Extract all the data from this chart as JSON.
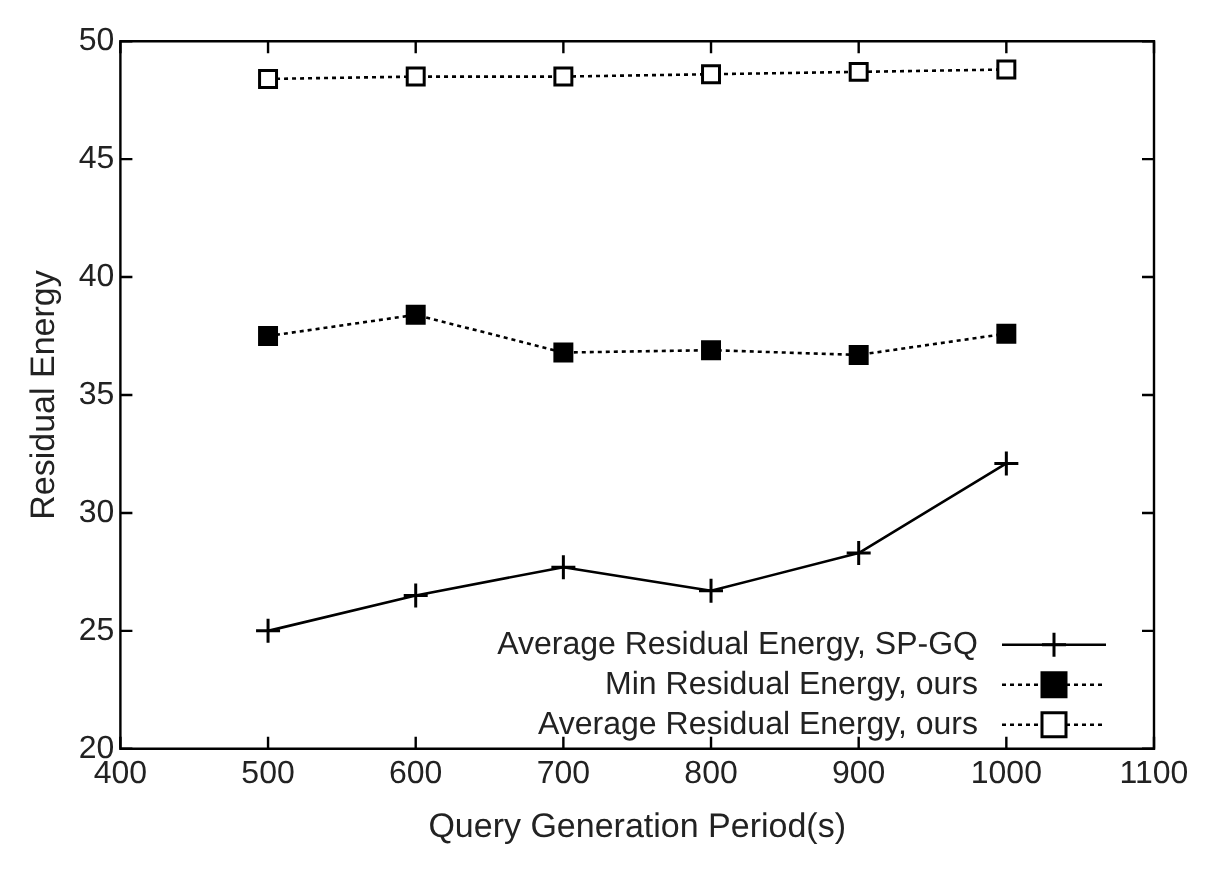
{
  "chart_data": {
    "type": "line",
    "xlabel": "Query Generation Period(s)",
    "ylabel": "Residual Energy",
    "x": [
      500,
      600,
      700,
      800,
      900,
      1000
    ],
    "series": [
      {
        "name": "Average Residual Energy, SP-GQ",
        "color": "#000000",
        "marker": "cross",
        "line_style": "solid",
        "values": [
          25.0,
          26.5,
          27.7,
          26.7,
          28.3,
          32.1
        ]
      },
      {
        "name": "Min Residual Energy, ours",
        "color": "#000000",
        "marker": "square",
        "line_style": "dotted",
        "values": [
          37.5,
          38.4,
          36.8,
          36.9,
          36.7,
          37.6
        ]
      },
      {
        "name": "Average Residual Energy, ours",
        "color": "#000000",
        "marker": "square_open",
        "line_style": "dotted",
        "values": [
          48.4,
          48.5,
          48.5,
          48.6,
          48.7,
          48.8
        ]
      }
    ],
    "xlim": [
      400,
      1100
    ],
    "xticks": [
      400,
      500,
      600,
      700,
      800,
      900,
      1000,
      1100
    ],
    "ylim": [
      20,
      50
    ],
    "yticks": [
      20,
      25,
      30,
      35,
      40,
      45,
      50
    ],
    "grid": false,
    "legend": "bottom right"
  }
}
